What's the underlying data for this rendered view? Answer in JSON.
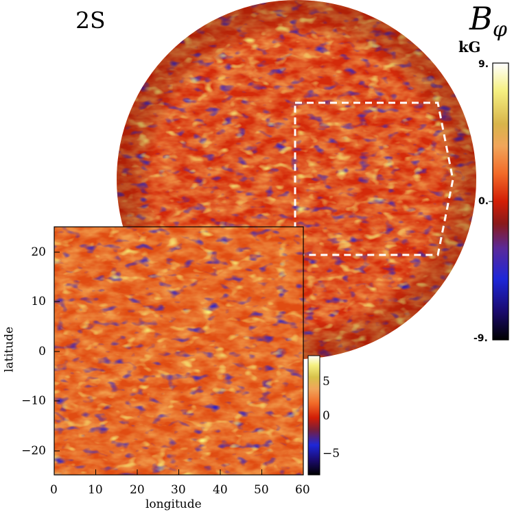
{
  "panel_label": "2S",
  "quantity_symbol": "B",
  "quantity_subscript": "φ",
  "unit": "kG",
  "main_colorbar": {
    "max_label": "9.",
    "mid_label": "0.",
    "min_label": "-9.",
    "colors": [
      "#000000",
      "#1a0a6b",
      "#1e27d8",
      "#5a2a9a",
      "#8a1a1a",
      "#d21e06",
      "#f26a28",
      "#f1a55a",
      "#d8b44a",
      "#f5f081",
      "#ffffff"
    ]
  },
  "inset": {
    "x_label": "longitude",
    "y_label": "latitude",
    "x_ticks": [
      "0",
      "10",
      "20",
      "30",
      "40",
      "50",
      "60"
    ],
    "y_ticks": [
      "20",
      "10",
      "0",
      "−10",
      "−20"
    ],
    "colorbar_ticks": [
      "5",
      "0",
      "−5"
    ]
  }
}
